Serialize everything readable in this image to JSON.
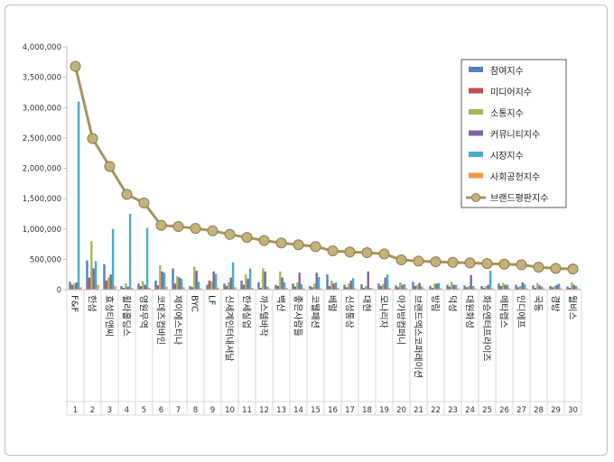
{
  "chart_data": {
    "type": "bar",
    "title": "",
    "xlabel": "",
    "ylabel": "",
    "ylim": [
      0,
      4000000
    ],
    "yticks": [
      "0",
      "500,000",
      "1,000,000",
      "1,500,000",
      "2,000,000",
      "2,500,000",
      "3,000,000",
      "3,500,000",
      "4,000,000"
    ],
    "ytick_values": [
      0,
      500000,
      1000000,
      1500000,
      2000000,
      2500000,
      3000000,
      3500000,
      4000000
    ],
    "grid": false,
    "legend_position": "top-right",
    "ranks": [
      "1",
      "2",
      "3",
      "4",
      "5",
      "6",
      "7",
      "8",
      "9",
      "10",
      "11",
      "12",
      "13",
      "14",
      "15",
      "16",
      "17",
      "18",
      "19",
      "20",
      "21",
      "22",
      "23",
      "24",
      "25",
      "26",
      "27",
      "28",
      "29",
      "30"
    ],
    "categories": [
      "F&F",
      "한섬",
      "효성티앤씨",
      "휠라홀딩스",
      "영원무역",
      "코데즈컴바인",
      "제이에스티나",
      "BYC",
      "LF",
      "신세계인터내셔날",
      "한세실업",
      "까스텔바작",
      "백산",
      "좋은사람들",
      "코웰패션",
      "베럴",
      "신성통상",
      "대현",
      "모나리자",
      "아가방컴퍼니",
      "브랜드엑스코퍼레이션",
      "방림",
      "덕성",
      "대원화성",
      "화승엔터프라이즈",
      "메타랩스",
      "인디에프",
      "국동",
      "경방",
      "월비스"
    ],
    "series": [
      {
        "name": "참여지수",
        "color": "#4f81bd",
        "values": [
          130000,
          480000,
          420000,
          60000,
          100000,
          150000,
          350000,
          60000,
          80000,
          100000,
          150000,
          120000,
          80000,
          100000,
          60000,
          250000,
          80000,
          90000,
          100000,
          70000,
          130000,
          60000,
          80000,
          70000,
          60000,
          100000,
          80000,
          70000,
          60000,
          50000
        ]
      },
      {
        "name": "미디어지수",
        "color": "#c0504d",
        "values": [
          80000,
          200000,
          150000,
          30000,
          60000,
          70000,
          100000,
          40000,
          150000,
          60000,
          80000,
          30000,
          60000,
          50000,
          40000,
          60000,
          40000,
          30000,
          60000,
          40000,
          60000,
          30000,
          50000,
          40000,
          30000,
          60000,
          40000,
          30000,
          40000,
          30000
        ]
      },
      {
        "name": "소통지수",
        "color": "#9bbb59",
        "values": [
          100000,
          800000,
          200000,
          100000,
          140000,
          400000,
          220000,
          380000,
          130000,
          120000,
          250000,
          350000,
          300000,
          120000,
          100000,
          150000,
          100000,
          60000,
          90000,
          120000,
          80000,
          100000,
          130000,
          60000,
          60000,
          110000,
          60000,
          110000,
          60000,
          120000
        ]
      },
      {
        "name": "커뮤니티지수",
        "color": "#8064a2",
        "values": [
          120000,
          350000,
          250000,
          50000,
          80000,
          300000,
          200000,
          310000,
          300000,
          200000,
          180000,
          300000,
          200000,
          280000,
          280000,
          100000,
          150000,
          300000,
          200000,
          80000,
          110000,
          100000,
          80000,
          240000,
          80000,
          80000,
          120000,
          70000,
          80000,
          80000
        ]
      },
      {
        "name": "시장지수",
        "color": "#4bacc6",
        "values": [
          3100000,
          470000,
          1000000,
          1250000,
          1020000,
          280000,
          180000,
          130000,
          260000,
          450000,
          350000,
          50000,
          120000,
          90000,
          210000,
          120000,
          190000,
          30000,
          250000,
          90000,
          50000,
          110000,
          80000,
          60000,
          310000,
          80000,
          90000,
          50000,
          100000,
          60000
        ]
      },
      {
        "name": "사회공헌지수",
        "color": "#f79646",
        "values": [
          40000,
          80000,
          60000,
          30000,
          30000,
          50000,
          40000,
          20000,
          30000,
          40000,
          30000,
          20000,
          30000,
          20000,
          20000,
          30000,
          20000,
          20000,
          30000,
          20000,
          20000,
          20000,
          20000,
          20000,
          20000,
          20000,
          20000,
          20000,
          20000,
          20000
        ]
      }
    ],
    "line": {
      "name": "브랜드평판지수",
      "color": "#a6955f",
      "values": [
        3680000,
        2490000,
        2030000,
        1570000,
        1430000,
        1060000,
        1040000,
        1010000,
        970000,
        910000,
        860000,
        810000,
        770000,
        740000,
        710000,
        640000,
        620000,
        610000,
        590000,
        490000,
        470000,
        460000,
        450000,
        440000,
        430000,
        420000,
        410000,
        370000,
        350000,
        340000
      ]
    }
  }
}
